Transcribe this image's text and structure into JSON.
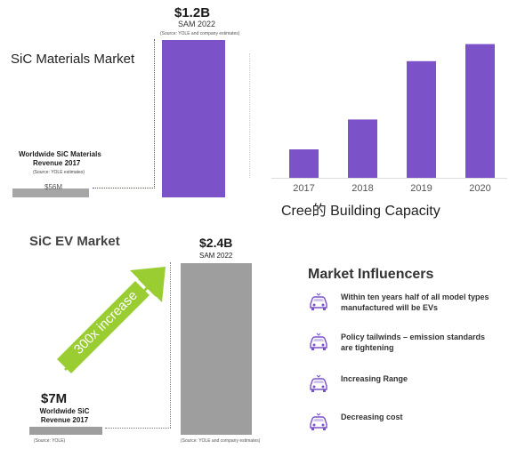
{
  "panel_materials": {
    "title": "SiC Materials Market",
    "big_value": "$1.2B",
    "big_sub": "SAM 2022",
    "big_source": "(Source: YOLE and company estimates)",
    "small_value": "$56M",
    "small_label_line1": "Worldwide SiC Materials",
    "small_label_line2": "Revenue 2017",
    "small_source": "(Source: YOLE estimates)",
    "colors": {
      "big_bar": "#7b52c8",
      "small_bar": "#a6a6a6"
    }
  },
  "panel_capacity": {
    "title": "Cree的 Building Capacity"
  },
  "panel_ev": {
    "title": "SiC EV Market",
    "big_value": "$2.4B",
    "big_sub": "SAM 2022",
    "big_source": "(Source: YOLE and company estimates)",
    "small_value": "$7M",
    "small_label_line1": "Worldwide SiC",
    "small_label_line2": "Revenue 2017",
    "small_source": "(Source: YOLE)",
    "arrow_text": "300x increase",
    "colors": {
      "bars": "#9e9e9e",
      "arrow": "#9acd32"
    }
  },
  "panel_influencers": {
    "title": "Market Influencers",
    "items": [
      {
        "line1": "Within ten years half of all model types",
        "line2": "manufactured will be EVs",
        "icon": "car-icon"
      },
      {
        "line1": "Policy tailwinds – emission standards",
        "line2": "are tightening",
        "icon": "car-icon"
      },
      {
        "line1": "Increasing Range",
        "line2": "",
        "icon": "car-icon"
      },
      {
        "line1": "Decreasing cost",
        "line2": "",
        "icon": "car-icon"
      }
    ],
    "icon_color": "#7b52c8"
  },
  "chart_data": [
    {
      "type": "bar",
      "categories": [
        "2017",
        "2022"
      ],
      "values": [
        56,
        1200
      ],
      "title": "SiC Materials Market",
      "xlabel": "",
      "ylabel": ""
    },
    {
      "type": "bar",
      "categories": [
        "2017",
        "2018",
        "2019",
        "2020"
      ],
      "values": [
        20,
        41,
        82,
        94
      ],
      "title": "Cree的 Building Capacity",
      "xlabel": "",
      "ylabel": "",
      "ylim": [
        0,
        100
      ],
      "color": "#7b52c8"
    },
    {
      "type": "bar",
      "categories": [
        "2017",
        "2022"
      ],
      "values": [
        7,
        2400
      ],
      "title": "SiC EV Market",
      "xlabel": "",
      "ylabel": ""
    }
  ]
}
